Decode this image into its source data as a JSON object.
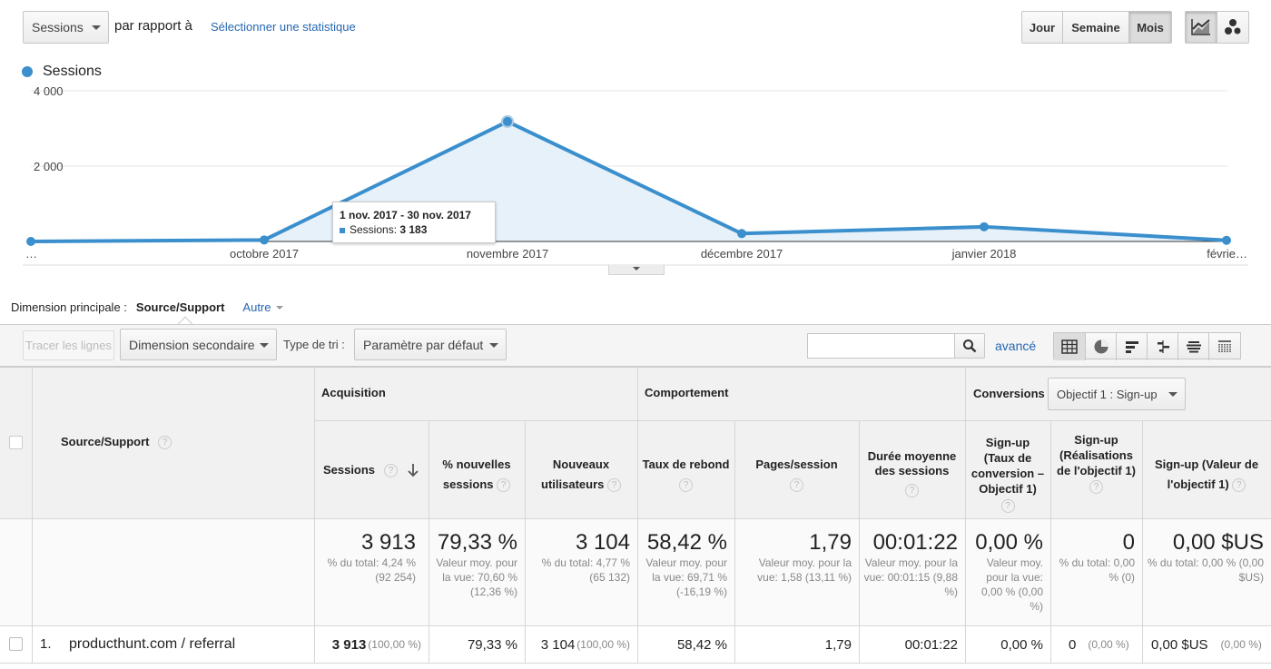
{
  "top_controls": {
    "metric_select": "Sessions",
    "compare_text": "par rapport à",
    "select_metric_link": "Sélectionner une statistique",
    "periods": [
      "Jour",
      "Semaine",
      "Mois"
    ],
    "active_period": "Mois",
    "chart_type_icons": [
      "line-chart-icon",
      "motion-chart-icon"
    ]
  },
  "chart": {
    "legend": "Sessions",
    "tooltip_title": "1 nov. 2017 - 30 nov. 2017",
    "tooltip_label": "Sessions:",
    "tooltip_value": "3 183"
  },
  "chart_data": {
    "type": "area",
    "x": [
      "…",
      "octobre 2017",
      "novembre 2017",
      "décembre 2017",
      "janvier 2018",
      "févrie…"
    ],
    "series": [
      {
        "name": "Sessions",
        "values": [
          0,
          40,
          3183,
          210,
          390,
          30
        ]
      }
    ],
    "y_ticks": [
      "4 000",
      "2 000"
    ],
    "ylim": [
      0,
      4000
    ],
    "grid": true,
    "legend_position": "top-left",
    "colors": {
      "line": "#3a8fcc",
      "fill": "#e7f1fa"
    }
  },
  "dimension_bar": {
    "label": "Dimension principale :",
    "active": "Source/Support",
    "other": "Autre"
  },
  "toolbar": {
    "plot_rows": "Tracer les lignes",
    "secondary_dim": "Dimension secondaire",
    "sort_label": "Type de tri :",
    "sort_value": "Paramètre par défaut",
    "search_placeholder": "",
    "advanced": "avancé",
    "view_icons": [
      "data-table-icon",
      "pie-chart-icon",
      "performance-icon",
      "comparison-icon",
      "term-cloud-icon",
      "pivot-icon"
    ]
  },
  "table": {
    "groups": {
      "acquisition": "Acquisition",
      "behavior": "Comportement",
      "conversions": "Conversions",
      "goal_select": "Objectif 1 : Sign-up"
    },
    "dim_header": "Source/Support",
    "columns": [
      {
        "label": "Sessions"
      },
      {
        "label": "% nouvelles sessions"
      },
      {
        "label": "Nouveaux utilisateurs"
      },
      {
        "label": "Taux de rebond"
      },
      {
        "label": "Pages/session"
      },
      {
        "label": "Durée moyenne des sessions"
      },
      {
        "label": "Sign-up (Taux de conversion – Objectif 1)"
      },
      {
        "label": "Sign-up (Réalisations de l'objectif 1)"
      },
      {
        "label": "Sign-up (Valeur de l'objectif 1)"
      }
    ],
    "totals": [
      {
        "big": "3 913",
        "sub": "% du total: 4,24 % (92 254)"
      },
      {
        "big": "79,33 %",
        "sub": "Valeur moy. pour la vue: 70,60 % (12,36 %)"
      },
      {
        "big": "3 104",
        "sub": "% du total: 4,77 % (65 132)"
      },
      {
        "big": "58,42 %",
        "sub": "Valeur moy. pour la vue: 69,71 % (-16,19 %)"
      },
      {
        "big": "1,79",
        "sub": "Valeur moy. pour la vue: 1,58 (13,11 %)"
      },
      {
        "big": "00:01:22",
        "sub": "Valeur moy. pour la vue: 00:01:15 (9,88 %)"
      },
      {
        "big": "0,00 %",
        "sub": "Valeur moy. pour la vue: 0,00 % (0,00 %)"
      },
      {
        "big": "0",
        "sub": "% du total: 0,00 % (0)"
      },
      {
        "big": "0,00 $US",
        "sub": "% du total: 0,00 % (0,00 $US)"
      }
    ],
    "rows": [
      {
        "index": "1.",
        "source": "producthunt.com / referral",
        "cells": [
          {
            "v": "3 913",
            "p": "(100,00 %)"
          },
          {
            "v": "79,33 %",
            "p": ""
          },
          {
            "v": "3 104",
            "p": "(100,00 %)"
          },
          {
            "v": "58,42 %",
            "p": ""
          },
          {
            "v": "1,79",
            "p": ""
          },
          {
            "v": "00:01:22",
            "p": ""
          },
          {
            "v": "0,00 %",
            "p": ""
          },
          {
            "v": "0",
            "p": "(0,00 %)"
          },
          {
            "v": "0,00 $US",
            "p": "(0,00 %)"
          }
        ]
      }
    ]
  }
}
